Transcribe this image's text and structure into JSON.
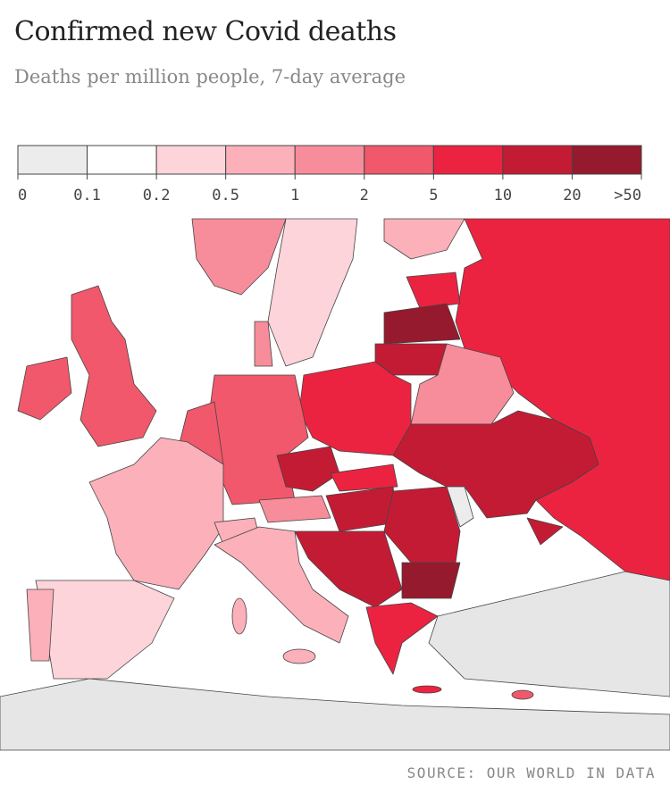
{
  "header": {
    "title": "Confirmed new Covid deaths",
    "subtitle": "Deaths per million people, 7-day average"
  },
  "legend": {
    "ticks": [
      0,
      0.1,
      0.2,
      0.5,
      1,
      2,
      5,
      10,
      20,
      {
        "value": 50,
        "label": ">50"
      }
    ],
    "colors": [
      "#ececec",
      "#ffffff",
      "#fdd4da",
      "#fbb0ba",
      "#f78d9a",
      "#f1586b",
      "#ec2340",
      "#c41b35",
      "#951a2e"
    ]
  },
  "footer": {
    "source": "SOURCE: OUR WORLD IN DATA"
  }
}
